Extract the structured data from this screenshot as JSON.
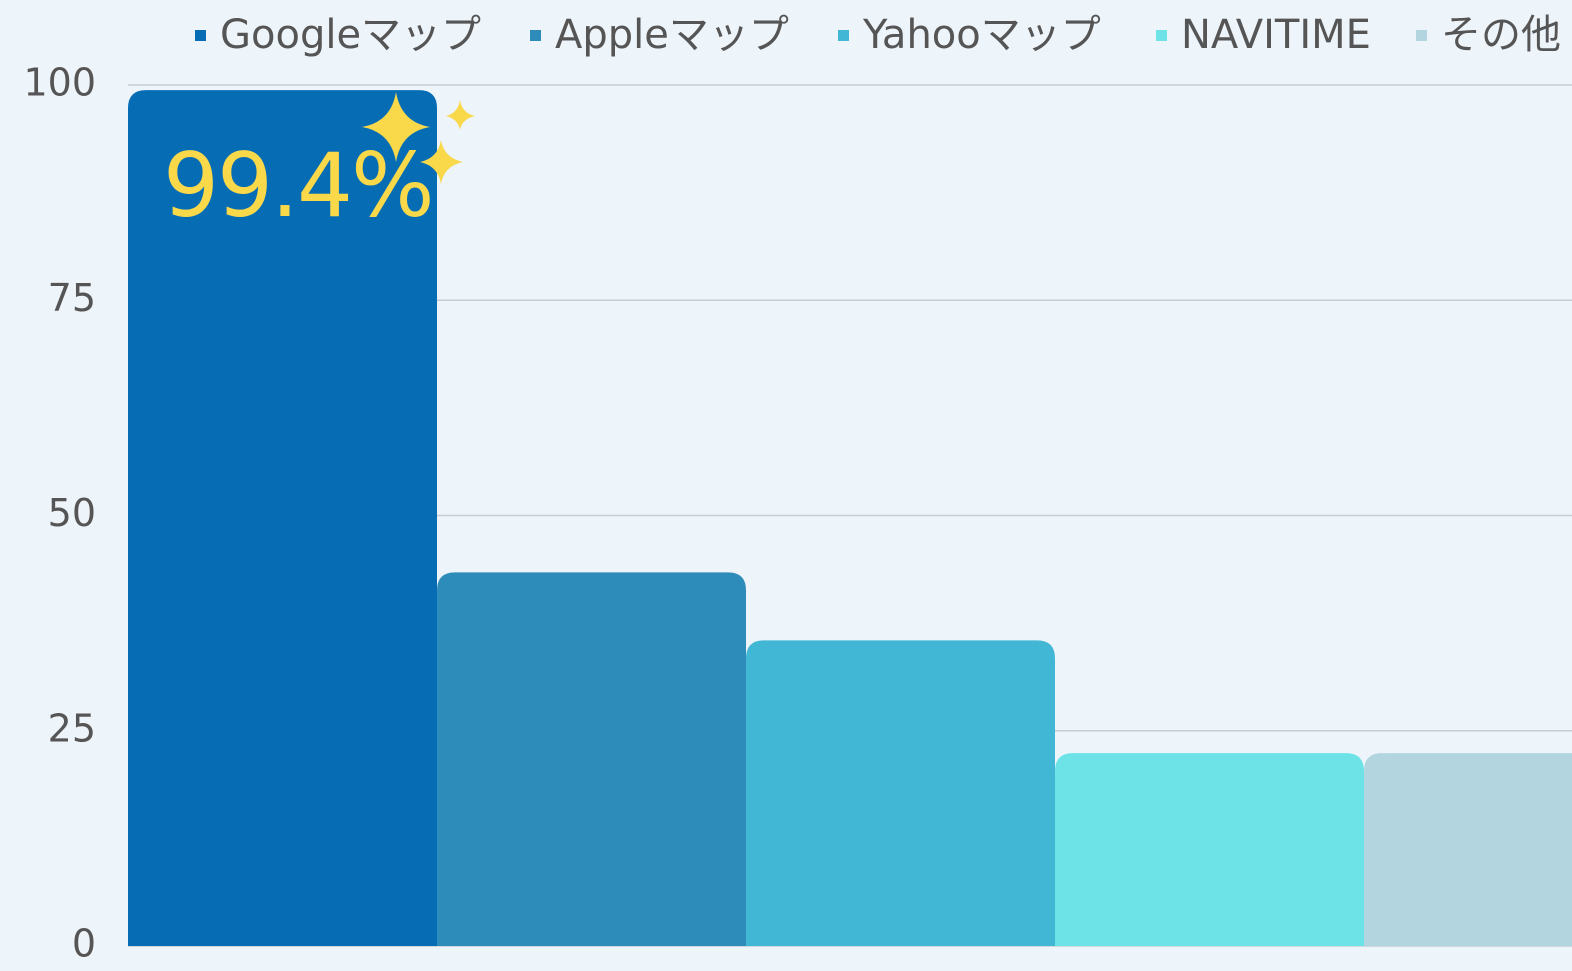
{
  "chart_data": {
    "type": "bar",
    "categories": [
      null
    ],
    "series": [
      {
        "name": "Googleマップ",
        "color": "#066db5",
        "values": [
          99.4
        ],
        "value_labels": [
          "99.4%"
        ]
      },
      {
        "name": "Appleマップ",
        "color": "#2d8cba",
        "values": [
          43.4
        ]
      },
      {
        "name": "Yahooマップ",
        "color": "#42b7d5",
        "values": [
          35.5
        ]
      },
      {
        "name": "NAVITIME",
        "color": "#6de3e8",
        "values": [
          22.4
        ]
      },
      {
        "name": "その他",
        "color": "#b2d5e0",
        "values": [
          22.4
        ]
      }
    ],
    "ylim": [
      0,
      100
    ],
    "yticks": [
      0,
      25,
      50,
      75,
      100
    ],
    "grid": true,
    "legend": "top"
  }
}
